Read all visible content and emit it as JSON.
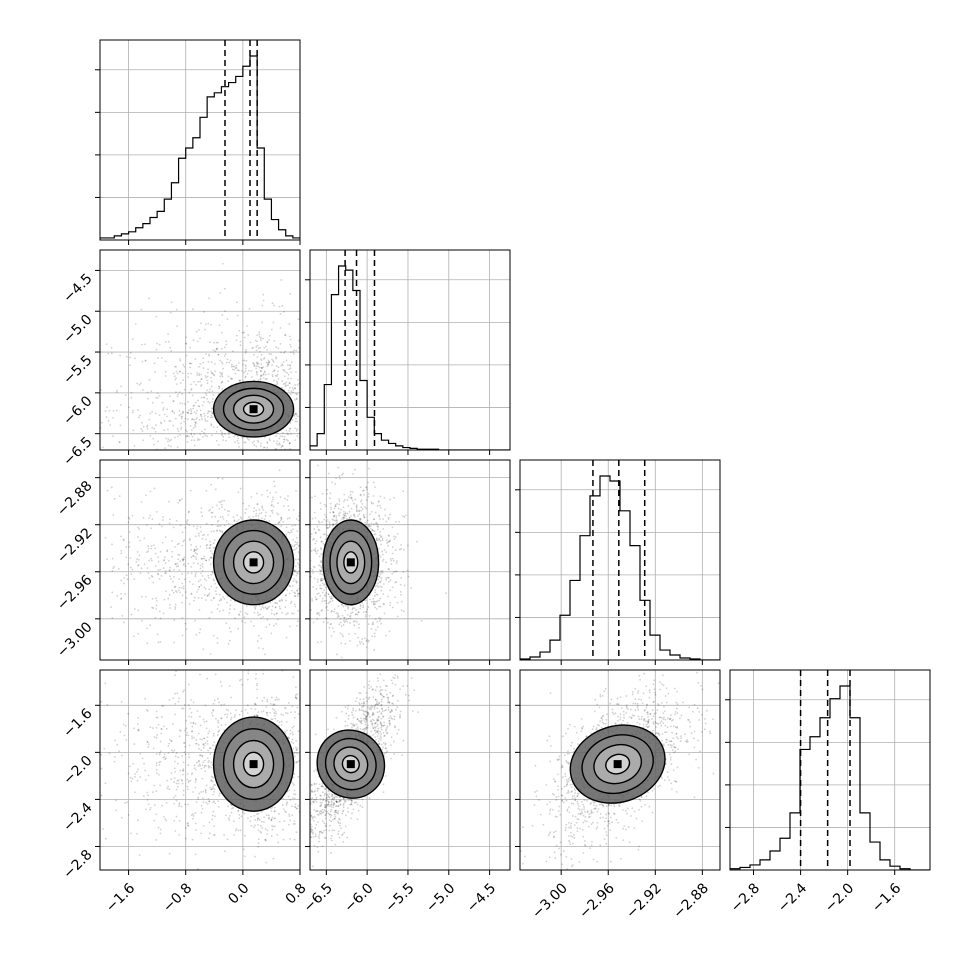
{
  "chart_data": {
    "type": "corner",
    "n_params": 4,
    "params": [
      {
        "range": [
          -2.0,
          0.8
        ],
        "ticks": [
          -1.6,
          -0.8,
          0.0,
          0.8
        ],
        "tick_labels": [
          "−1.6",
          "−0.8",
          "0.0",
          "0.8"
        ],
        "quantiles": [
          -0.25,
          0.1,
          0.2
        ],
        "mode": 0.15,
        "spread": 0.28
      },
      {
        "range": [
          -6.7,
          -4.25
        ],
        "ticks": [
          -6.5,
          -6.0,
          -5.5,
          -5.0,
          -4.5
        ],
        "tick_labels": [
          "−6.5",
          "−6.0",
          "−5.5",
          "−5.0",
          "−4.5"
        ],
        "quantiles": [
          -6.27,
          -6.13,
          -5.91
        ],
        "mode": -6.2,
        "spread": 0.17
      },
      {
        "range": [
          -3.035,
          -2.865
        ],
        "ticks": [
          -3.0,
          -2.96,
          -2.92,
          -2.88
        ],
        "tick_labels": [
          "−3.00",
          "−2.96",
          "−2.92",
          "−2.88"
        ],
        "quantiles": [
          -2.973,
          -2.951,
          -2.929
        ],
        "mode": -2.952,
        "spread": 0.018
      },
      {
        "range": [
          -3.0,
          -1.3
        ],
        "ticks": [
          -2.8,
          -2.4,
          -2.0,
          -1.6
        ],
        "tick_labels": [
          "−2.8",
          "−2.4",
          "−2.0",
          "−1.6"
        ],
        "quantiles": [
          -2.4,
          -2.17,
          -1.98
        ],
        "mode": -2.1,
        "spread": 0.2
      }
    ],
    "histograms": [
      {
        "param": 0,
        "bin_edges_start": -2.0,
        "bin_width": 0.1,
        "counts": [
          1,
          1,
          2,
          3,
          4,
          6,
          8,
          11,
          14,
          20,
          28,
          40,
          45,
          50,
          60,
          70,
          72,
          75,
          77,
          80,
          85,
          90,
          45,
          20,
          10,
          5,
          2,
          1
        ]
      },
      {
        "param": 1,
        "bin_edges_start": -6.7,
        "bin_width": 0.0875,
        "counts": [
          5,
          20,
          80,
          190,
          225,
          220,
          195,
          85,
          40,
          20,
          12,
          8,
          5,
          3,
          2,
          1,
          1,
          1,
          0,
          0,
          0,
          0,
          0,
          0,
          0,
          0,
          0,
          0
        ]
      },
      {
        "param": 2,
        "bin_edges_start": -3.035,
        "bin_width": 0.0085,
        "counts": [
          1,
          3,
          8,
          20,
          45,
          80,
          125,
          165,
          185,
          180,
          150,
          115,
          60,
          25,
          10,
          5,
          2,
          1,
          0,
          0
        ]
      },
      {
        "param": 3,
        "bin_edges_start": -3.0,
        "bin_width": 0.085,
        "counts": [
          1,
          2,
          4,
          8,
          15,
          25,
          45,
          95,
          105,
          120,
          135,
          145,
          120,
          45,
          22,
          8,
          3,
          1,
          0,
          0
        ]
      }
    ],
    "pairs": [
      {
        "x": 0,
        "y": 1,
        "corr": 0.0
      },
      {
        "x": 0,
        "y": 2,
        "corr": 0.0
      },
      {
        "x": 1,
        "y": 2,
        "corr": 0.0
      },
      {
        "x": 0,
        "y": 3,
        "corr": 0.0
      },
      {
        "x": 1,
        "y": 3,
        "corr": 0.75
      },
      {
        "x": 2,
        "y": 3,
        "corr": 0.55
      }
    ],
    "contour_levels_sigma": [
      0.5,
      1.0,
      1.5,
      2.0
    ],
    "grid": true,
    "colors": {
      "contour": "#000000",
      "points": "#000000",
      "grid": "#b0b0b0",
      "frame": "#000000"
    }
  }
}
